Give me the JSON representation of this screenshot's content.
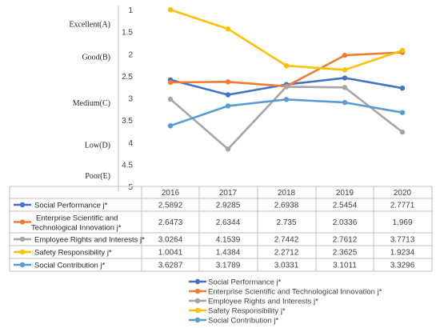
{
  "chart_data": {
    "type": "line",
    "x": [
      "2016",
      "2017",
      "2018",
      "2019",
      "2020"
    ],
    "ylim": [
      1,
      5
    ],
    "y_inverted": true,
    "y_ticks": [
      "1",
      "1.5",
      "2",
      "2.5",
      "3",
      "3.5",
      "4",
      "4.5",
      "5"
    ],
    "grade_labels": [
      "Excellent(A)",
      "Good(B)",
      "Medium(C)",
      "Low(D)",
      "Poor(E)"
    ],
    "grid": false,
    "legend_position": "bottom",
    "series": [
      {
        "name": "Social Performance j*",
        "table_label": [
          "Social Performance j*"
        ],
        "color": "#4472C4",
        "values": [
          2.5892,
          2.9285,
          2.6938,
          2.5454,
          2.7771
        ],
        "labels": [
          "2.5892",
          "2.9285",
          "2.6938",
          "2.5454",
          "2.7771"
        ]
      },
      {
        "name": "Enterprise Scientific and Technological Innovation j*",
        "table_label": [
          "Enterprise Scientific and",
          "Technological Innovation j*"
        ],
        "color": "#ED7D31",
        "values": [
          2.6473,
          2.6344,
          2.735,
          2.0336,
          1.969
        ],
        "labels": [
          "2.6473",
          "2.6344",
          "2.735",
          "2.0336",
          "1.969"
        ]
      },
      {
        "name": "Employee Rights and Interests j*",
        "table_label": [
          "Employee Rights and Interests j*"
        ],
        "color": "#A5A5A5",
        "values": [
          3.0264,
          4.1539,
          2.7442,
          2.7612,
          3.7713
        ],
        "labels": [
          "3.0264",
          "4.1539",
          "2.7442",
          "2.7612",
          "3.7713"
        ]
      },
      {
        "name": "Safety Responsibility j*",
        "table_label": [
          "Safety Responsibility j*"
        ],
        "color": "#FFC000",
        "values": [
          1.0041,
          1.4384,
          2.2712,
          2.3625,
          1.9234
        ],
        "labels": [
          "1.0041",
          "1.4384",
          "2.2712",
          "2.3625",
          "1.9234"
        ]
      },
      {
        "name": "Social Contribution j*",
        "table_label": [
          "Social Contribution j*"
        ],
        "color": "#5B9BD5",
        "values": [
          3.6287,
          3.1789,
          3.0331,
          3.1011,
          3.3296
        ],
        "labels": [
          "3.6287",
          "3.1789",
          "3.0331",
          "3.1011",
          "3.3296"
        ]
      }
    ]
  }
}
